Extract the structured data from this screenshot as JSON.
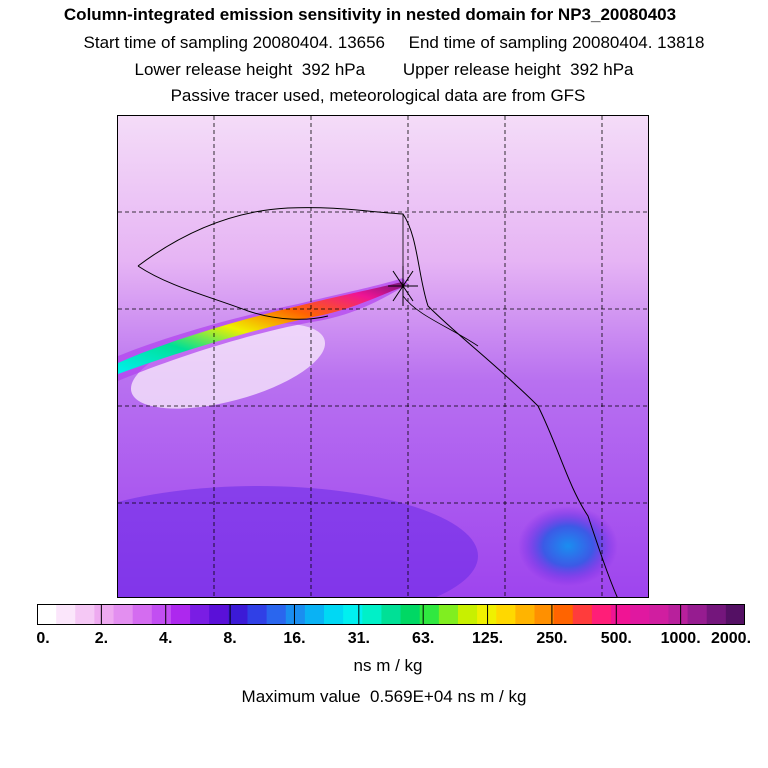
{
  "header": {
    "title": "Column-integrated emission sensitivity in nested domain for NP3_20080403",
    "line2": "Start time of sampling 20080404. 13656     End time of sampling 20080404. 13818",
    "line3": "Lower release height  392 hPa        Upper release height  392 hPa",
    "line4": "Passive tracer used, meteorological data are from GFS"
  },
  "colorbar": {
    "tick_labels": [
      "0.",
      "2.",
      "4.",
      "8.",
      "16.",
      "31.",
      "63.",
      "125.",
      "250.",
      "500.",
      "1000.",
      "2000."
    ],
    "colors": [
      "#ffffff",
      "#fbe6fb",
      "#f5c8f5",
      "#eeaaf0",
      "#e38ff0",
      "#d46cf0",
      "#c24ef2",
      "#ad28ee",
      "#7a1de4",
      "#5a10d8",
      "#3c1ad6",
      "#3040e6",
      "#2a66ee",
      "#1a8ef0",
      "#0ab2f4",
      "#00d8f4",
      "#00f0f0",
      "#00f0c8",
      "#00e096",
      "#00d864",
      "#30e840",
      "#80ee20",
      "#c8f000",
      "#f0f000",
      "#ffd800",
      "#ffb400",
      "#ff9000",
      "#ff6400",
      "#ff3c3c",
      "#ff1e78",
      "#f01494",
      "#e018a0",
      "#d01ea0",
      "#b8209c",
      "#961c90",
      "#74167c",
      "#541064"
    ]
  },
  "units_label": "ns m / kg",
  "max_value_text": "Maximum value  0.569E+04 ns m / kg",
  "map": {
    "release_marker": "x-marker",
    "background_color": "#d9b8f5"
  }
}
